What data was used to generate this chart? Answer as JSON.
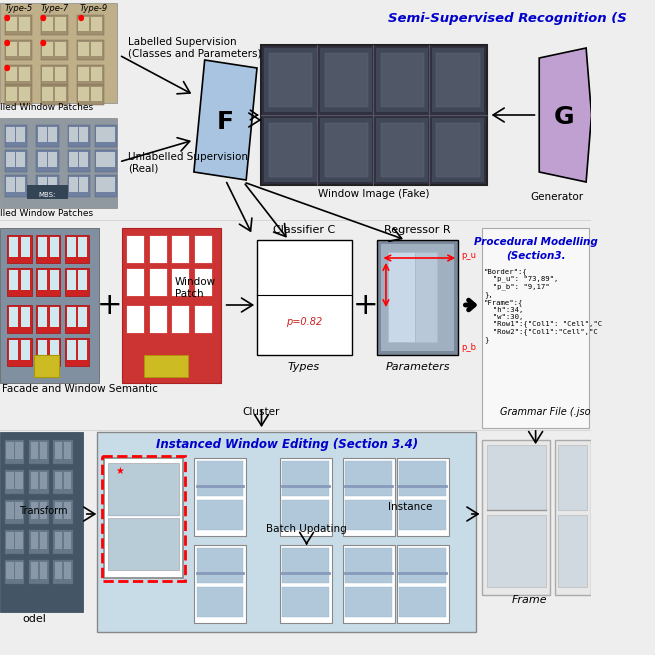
{
  "bg_color": "#eeeeee",
  "top_title": "Semi-Supervised Recognition (S",
  "top_title_color": "#0000cc",
  "procedural_title_line1": "Procedural Modelling",
  "procedural_title_line2": "(Section3.",
  "procedural_title_color": "#0000cc",
  "instanced_title": "Instanced Window Editing (Section 3.4)",
  "instanced_title_color": "#0000cc",
  "labels": {
    "F_box": "F",
    "G_box": "G",
    "labelled_sup": "Labelled Supervision\n(Classes and Parameters)",
    "unlabelled_sup": "Unlabelled Supervision\n(Real)",
    "window_fake": "Window Image (Fake)",
    "generator": "Generator",
    "classifier_c": "Classifier C",
    "regressor_r": "Regressor R",
    "window_patch_label": "Window\nPatch",
    "facade_semantic": "Facade and Window Semantic",
    "cluster": "Cluster",
    "types_label": "Types",
    "parameters_label": "Parameters",
    "p_val": "p=0.82",
    "grammar_file": "Grammar File (.jso",
    "frame_label": "Frame",
    "transform_label": "Transform",
    "instance_label": "Instance",
    "batch_updating": "Batch Updating",
    "model_label": "odel",
    "type5": "Type-5",
    "type7": "Type-7",
    "type9": "Type-9"
  },
  "colors": {
    "F_box": "#a8c4e0",
    "G_box": "#c0a0d0",
    "window_bg": "#303040",
    "classifier_box": "#ffffff",
    "parameter_image_bg": "#607080",
    "instanced_bg": "#c0d8e8",
    "frame_bg": "#e0e0e0",
    "building1_bg": "#b8a878",
    "building2_bg": "#909880",
    "facade_bg": "#cc3333",
    "facade_seg_bg": "#8090a0"
  }
}
